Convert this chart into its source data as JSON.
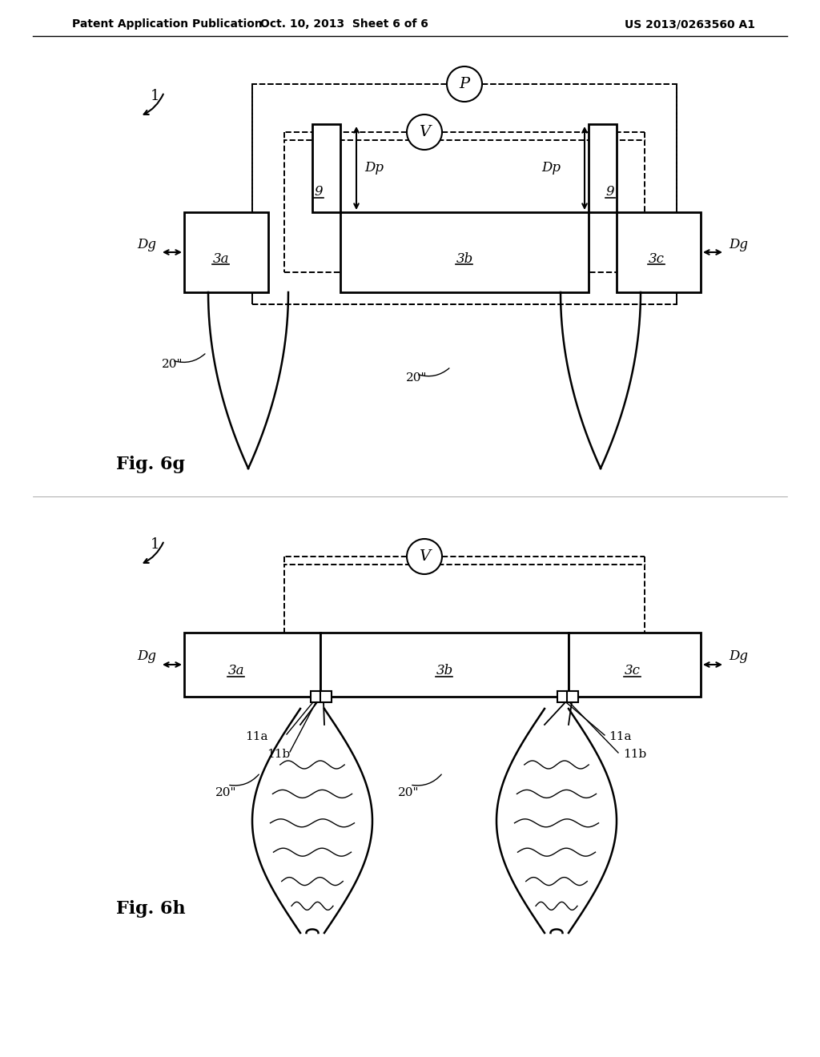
{
  "title_left": "Patent Application Publication",
  "title_mid": "Oct. 10, 2013  Sheet 6 of 6",
  "title_right": "US 2013/0263560 A1",
  "bg_color": "#ffffff",
  "line_color": "#000000",
  "fig6g_label": "Fig. 6g",
  "fig6h_label": "Fig. 6h"
}
